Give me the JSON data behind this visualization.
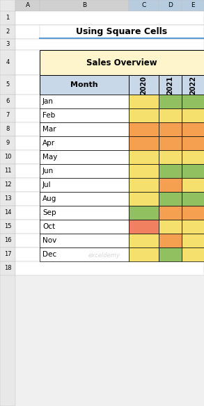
{
  "title": "Using Square Cells",
  "table_title": "Sales Overview",
  "months": [
    "Jan",
    "Feb",
    "Mar",
    "Apr",
    "May",
    "Jun",
    "Jul",
    "Aug",
    "Sep",
    "Oct",
    "Nov",
    "Dec"
  ],
  "years": [
    "2020",
    "2021",
    "2022"
  ],
  "colors": [
    [
      "#F5E06E",
      "#90C060",
      "#90C060"
    ],
    [
      "#F5E06E",
      "#F5E06E",
      "#F5E06E"
    ],
    [
      "#F5A050",
      "#F5A050",
      "#F5A050"
    ],
    [
      "#F5A050",
      "#F5A050",
      "#F5A050"
    ],
    [
      "#F5E06E",
      "#F5E06E",
      "#F5E06E"
    ],
    [
      "#F5E06E",
      "#90C060",
      "#90C060"
    ],
    [
      "#F5E06E",
      "#F5A050",
      "#F5E06E"
    ],
    [
      "#F5E06E",
      "#90C060",
      "#90C060"
    ],
    [
      "#90C060",
      "#F5A050",
      "#F5A050"
    ],
    [
      "#F08060",
      "#F5E06E",
      "#F5E06E"
    ],
    [
      "#F5E06E",
      "#F5A050",
      "#F5E06E"
    ],
    [
      "#F5E06E",
      "#90C060",
      "#F5E06E"
    ]
  ],
  "excel_bg": "#F0F0F0",
  "table_title_bg": "#FFF5CC",
  "month_header_bg": "#C8D8E8",
  "row_numbers": [
    "1",
    "2",
    "3",
    "4",
    "5",
    "6",
    "7",
    "8",
    "9",
    "10",
    "11",
    "12",
    "13",
    "14",
    "15",
    "16",
    "17",
    "18"
  ],
  "col_letters": [
    "A",
    "B",
    "C",
    "D",
    "E"
  ],
  "col_header_bg": "#D0D0D0",
  "row_header_bg": "#E8E8E8",
  "row_header_selected_bg": "#A0B8D0",
  "grid_line_color": "#C0C0C0",
  "title_line_color": "#5B9BD5",
  "watermark_color": "#C8C8C8"
}
